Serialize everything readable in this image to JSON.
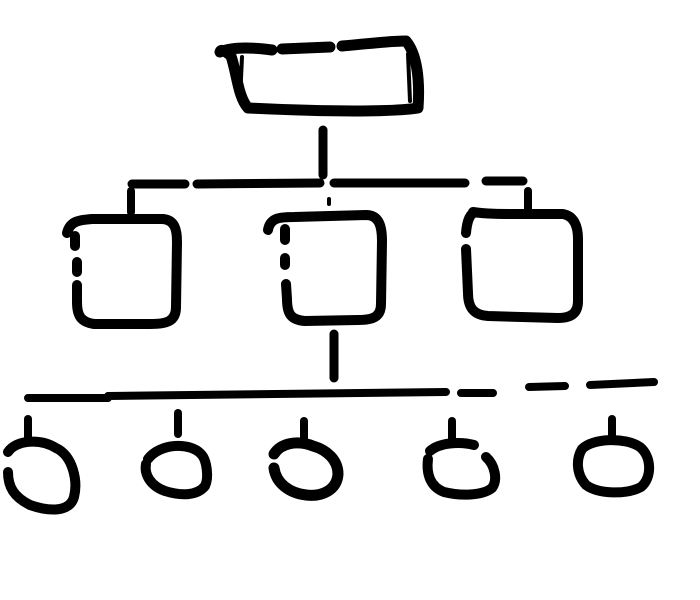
{
  "diagram": {
    "type": "hierarchy-sketch",
    "ink_color": "#000000",
    "background_color": "#ffffff",
    "labels": [],
    "levels": [
      {
        "level": 1,
        "shape": "rounded-rectangle",
        "count": 1
      },
      {
        "level": 2,
        "shape": "rounded-square",
        "count": 3
      },
      {
        "level": 3,
        "shape": "small-circle",
        "count": 5
      }
    ]
  }
}
